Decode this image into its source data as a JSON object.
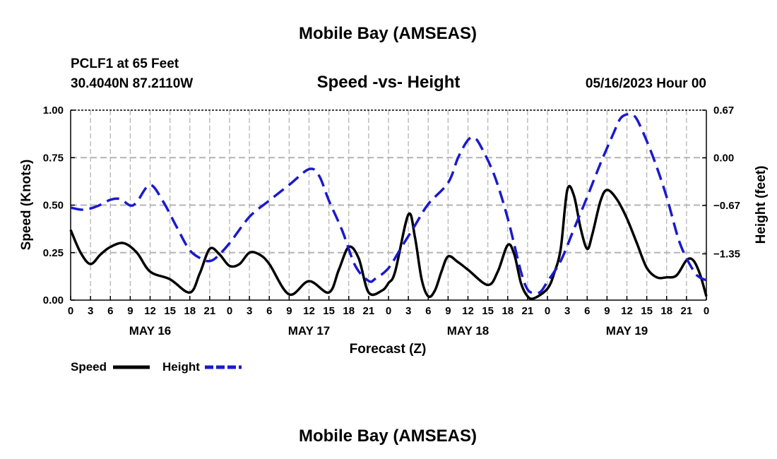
{
  "header": {
    "title": "Mobile Bay (AMSEAS)",
    "station": "PCLF1 at 65 Feet",
    "coords": "30.4040N  87.2110W",
    "subtitle": "Speed -vs- Height",
    "datetime": "05/16/2023 Hour 00"
  },
  "footer": {
    "title": "Mobile Bay (AMSEAS)"
  },
  "chart_data": {
    "type": "line",
    "title": "Speed -vs- Height",
    "xlabel": "Forecast (Z)",
    "ylabel": "Speed (Knots)",
    "y2label": "Height (feet)",
    "x_unit": "forecast hour",
    "xlim": [
      0,
      96
    ],
    "ylim": [
      0,
      1
    ],
    "y2lim": [
      -2.0,
      0.67
    ],
    "x_ticks": [
      0,
      3,
      6,
      9,
      12,
      15,
      18,
      21,
      24,
      27,
      30,
      33,
      36,
      39,
      42,
      45,
      48,
      51,
      54,
      57,
      60,
      63,
      66,
      69,
      72,
      75,
      78,
      81,
      84,
      87,
      90,
      93,
      96
    ],
    "x_tick_labels": [
      "0",
      "3",
      "6",
      "9",
      "12",
      "15",
      "18",
      "21",
      "0",
      "3",
      "6",
      "9",
      "12",
      "15",
      "18",
      "21",
      "0",
      "3",
      "6",
      "9",
      "12",
      "15",
      "18",
      "21",
      "0",
      "3",
      "6",
      "9",
      "12",
      "15",
      "18",
      "21",
      "0"
    ],
    "day_labels": [
      {
        "x": 12,
        "label": "MAY 16"
      },
      {
        "x": 36,
        "label": "MAY 17"
      },
      {
        "x": 60,
        "label": "MAY 18"
      },
      {
        "x": 84,
        "label": "MAY 19"
      }
    ],
    "y_ticks": [
      0,
      0.25,
      0.5,
      0.75,
      1.0
    ],
    "y_tick_labels": [
      "0.00",
      "0.25",
      "0.50",
      "0.75",
      "1.00"
    ],
    "y2_ticks": [
      -1.35,
      -0.67,
      0.0,
      0.67
    ],
    "y2_tick_labels": [
      "−1.35",
      "−0.67",
      "0.00",
      "0.67"
    ],
    "grid": true,
    "legend": [
      {
        "name": "Speed",
        "color": "#000000",
        "style": "solid"
      },
      {
        "name": "Height",
        "color": "#1a1acc",
        "style": "dashed"
      }
    ],
    "series": [
      {
        "name": "Speed",
        "axis": "left",
        "color": "#000000",
        "style": "solid",
        "points": [
          [
            0,
            0.37
          ],
          [
            1.5,
            0.25
          ],
          [
            3,
            0.19
          ],
          [
            4.5,
            0.24
          ],
          [
            6,
            0.28
          ],
          [
            8,
            0.3
          ],
          [
            10,
            0.25
          ],
          [
            12,
            0.15
          ],
          [
            15,
            0.11
          ],
          [
            18,
            0.04
          ],
          [
            19.5,
            0.14
          ],
          [
            21,
            0.27
          ],
          [
            22.5,
            0.24
          ],
          [
            24,
            0.18
          ],
          [
            25.5,
            0.19
          ],
          [
            27,
            0.25
          ],
          [
            28.5,
            0.24
          ],
          [
            30,
            0.19
          ],
          [
            33,
            0.03
          ],
          [
            36,
            0.1
          ],
          [
            39,
            0.04
          ],
          [
            40.5,
            0.16
          ],
          [
            42,
            0.28
          ],
          [
            43.5,
            0.22
          ],
          [
            45,
            0.04
          ],
          [
            47,
            0.05
          ],
          [
            48,
            0.09
          ],
          [
            49,
            0.15
          ],
          [
            51,
            0.45
          ],
          [
            52,
            0.33
          ],
          [
            53,
            0.11
          ],
          [
            54,
            0.02
          ],
          [
            55,
            0.05
          ],
          [
            56,
            0.15
          ],
          [
            57,
            0.23
          ],
          [
            58.5,
            0.2
          ],
          [
            60,
            0.16
          ],
          [
            63,
            0.08
          ],
          [
            64.5,
            0.15
          ],
          [
            66,
            0.29
          ],
          [
            67,
            0.24
          ],
          [
            68,
            0.09
          ],
          [
            69,
            0.02
          ],
          [
            70,
            0.01
          ],
          [
            72,
            0.06
          ],
          [
            73,
            0.14
          ],
          [
            74,
            0.27
          ],
          [
            75,
            0.58
          ],
          [
            76,
            0.55
          ],
          [
            77,
            0.38
          ],
          [
            78,
            0.27
          ],
          [
            78.8,
            0.35
          ],
          [
            80,
            0.52
          ],
          [
            81,
            0.58
          ],
          [
            82.5,
            0.53
          ],
          [
            84,
            0.43
          ],
          [
            85.5,
            0.3
          ],
          [
            87,
            0.17
          ],
          [
            88.5,
            0.12
          ],
          [
            90,
            0.12
          ],
          [
            91.5,
            0.13
          ],
          [
            93,
            0.21
          ],
          [
            94,
            0.21
          ],
          [
            95,
            0.14
          ],
          [
            96,
            0.02
          ]
        ]
      },
      {
        "name": "Height",
        "axis": "right",
        "color": "#1a1acc",
        "style": "dashed",
        "points": [
          [
            0,
            -0.7
          ],
          [
            2,
            -0.73
          ],
          [
            4,
            -0.68
          ],
          [
            6,
            -0.59
          ],
          [
            7.5,
            -0.58
          ],
          [
            9,
            -0.67
          ],
          [
            10,
            -0.62
          ],
          [
            12,
            -0.38
          ],
          [
            14,
            -0.62
          ],
          [
            16,
            -0.97
          ],
          [
            18,
            -1.3
          ],
          [
            20,
            -1.43
          ],
          [
            21,
            -1.45
          ],
          [
            22,
            -1.4
          ],
          [
            24,
            -1.2
          ],
          [
            27,
            -0.83
          ],
          [
            30,
            -0.6
          ],
          [
            33,
            -0.38
          ],
          [
            36,
            -0.16
          ],
          [
            37.5,
            -0.25
          ],
          [
            39,
            -0.6
          ],
          [
            41,
            -1.02
          ],
          [
            43,
            -1.52
          ],
          [
            45,
            -1.73
          ],
          [
            46,
            -1.7
          ],
          [
            48,
            -1.55
          ],
          [
            50,
            -1.25
          ],
          [
            52,
            -0.95
          ],
          [
            54,
            -0.65
          ],
          [
            57,
            -0.35
          ],
          [
            58.5,
            0.0
          ],
          [
            60,
            0.25
          ],
          [
            61,
            0.28
          ],
          [
            62,
            0.15
          ],
          [
            64,
            -0.25
          ],
          [
            66,
            -0.85
          ],
          [
            68,
            -1.6
          ],
          [
            69,
            -1.85
          ],
          [
            70,
            -1.9
          ],
          [
            71,
            -1.88
          ],
          [
            72,
            -1.74
          ],
          [
            74,
            -1.45
          ],
          [
            76,
            -1.0
          ],
          [
            78,
            -0.55
          ],
          [
            80,
            -0.08
          ],
          [
            82,
            0.35
          ],
          [
            83,
            0.55
          ],
          [
            84,
            0.61
          ],
          [
            85,
            0.6
          ],
          [
            86,
            0.45
          ],
          [
            88,
            0.0
          ],
          [
            90,
            -0.55
          ],
          [
            92,
            -1.2
          ],
          [
            94,
            -1.58
          ],
          [
            95,
            -1.68
          ],
          [
            96,
            -1.72
          ]
        ]
      }
    ]
  }
}
